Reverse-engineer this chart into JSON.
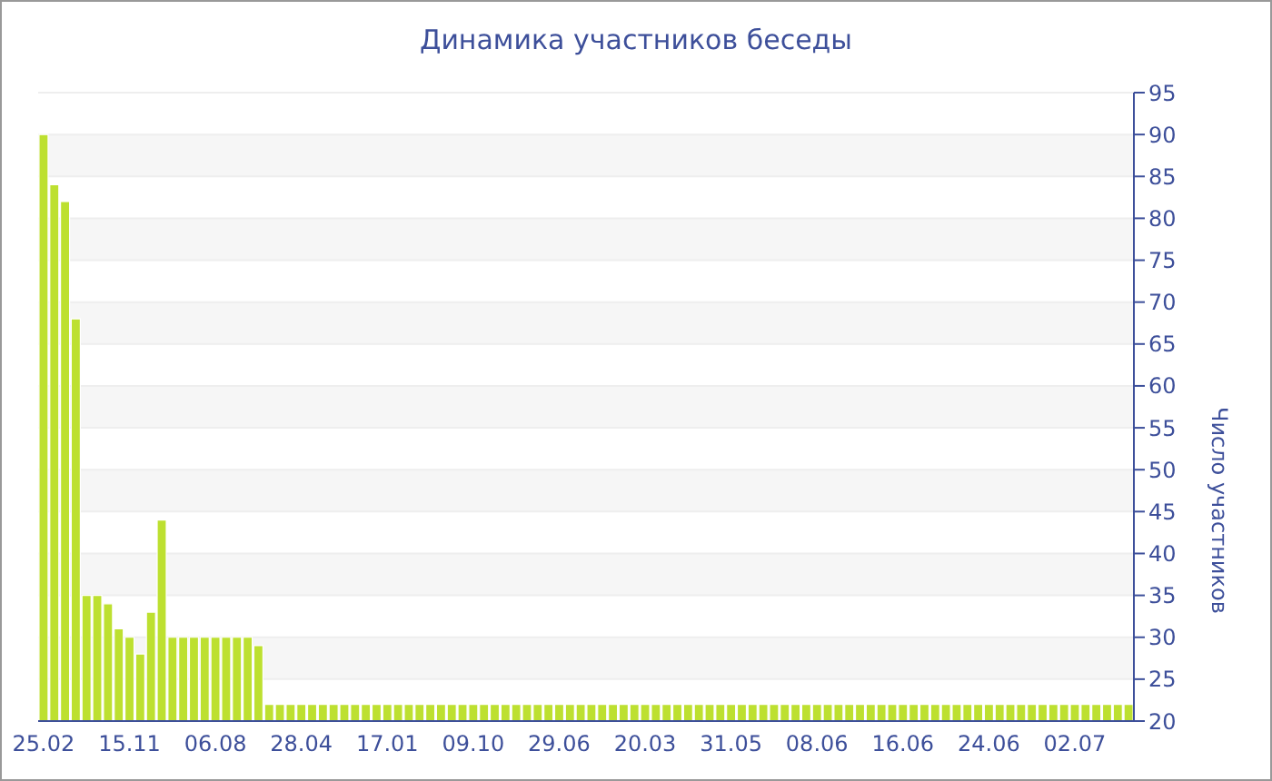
{
  "chart_data": {
    "type": "bar",
    "title": "Динамика участников беседы",
    "ylabel": "Число участников",
    "categories": [
      "25.02",
      null,
      null,
      null,
      null,
      null,
      null,
      null,
      "15.11",
      null,
      null,
      null,
      null,
      null,
      null,
      null,
      "06.08",
      null,
      null,
      null,
      null,
      null,
      null,
      null,
      "28.04",
      null,
      null,
      null,
      null,
      null,
      null,
      null,
      "17.01",
      null,
      null,
      null,
      null,
      null,
      null,
      null,
      "09.10",
      null,
      null,
      null,
      null,
      null,
      null,
      null,
      "29.06",
      null,
      null,
      null,
      null,
      null,
      null,
      null,
      "20.03",
      null,
      null,
      null,
      null,
      null,
      null,
      null,
      "31.05",
      null,
      null,
      null,
      null,
      null,
      null,
      null,
      "08.06",
      null,
      null,
      null,
      null,
      null,
      null,
      null,
      "16.06",
      null,
      null,
      null,
      null,
      null,
      null,
      null,
      "24.06",
      null,
      null,
      null,
      null,
      null,
      null,
      null,
      "02.07",
      null,
      null,
      null,
      null,
      null
    ],
    "values": [
      90,
      84,
      82,
      68,
      35,
      35,
      34,
      31,
      30,
      28,
      33,
      44,
      30,
      30,
      30,
      30,
      30,
      30,
      30,
      30,
      29,
      22,
      22,
      22,
      22,
      22,
      22,
      22,
      22,
      22,
      22,
      22,
      22,
      22,
      22,
      22,
      22,
      22,
      22,
      22,
      22,
      22,
      22,
      22,
      22,
      22,
      22,
      22,
      22,
      22,
      22,
      22,
      22,
      22,
      22,
      22,
      22,
      22,
      22,
      22,
      22,
      22,
      22,
      22,
      22,
      22,
      22,
      22,
      22,
      22,
      22,
      22,
      22,
      22,
      22,
      22,
      22,
      22,
      22,
      22,
      22,
      22,
      22,
      22,
      22,
      22,
      22,
      22,
      22,
      22,
      22,
      22,
      22,
      22,
      22,
      22,
      22,
      22,
      22,
      22,
      22,
      22
    ],
    "color": "#bde030",
    "ylim": [
      20,
      95
    ],
    "yticks": [
      20,
      25,
      30,
      35,
      40,
      45,
      50,
      55,
      60,
      65,
      70,
      75,
      80,
      85,
      90,
      95
    ],
    "grid": "y",
    "legend": false
  }
}
